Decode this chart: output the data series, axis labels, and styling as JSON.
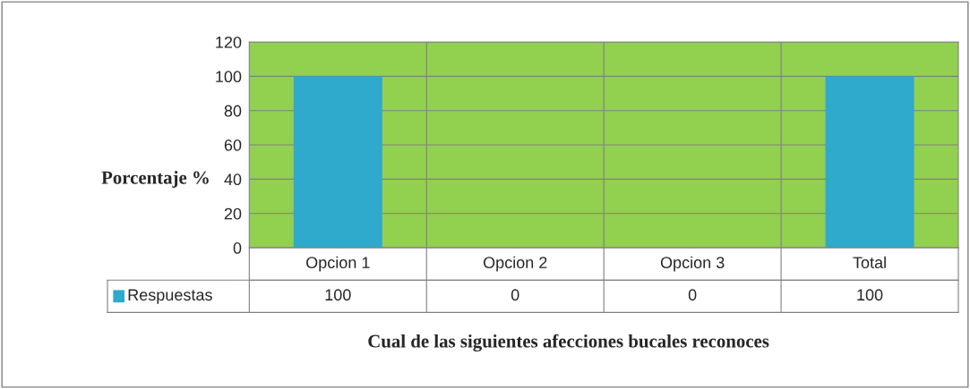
{
  "chart_data": {
    "type": "bar",
    "categories": [
      "Opcion 1",
      "Opcion 2",
      "Opcion 3",
      "Total"
    ],
    "series": [
      {
        "name": "Respuestas",
        "color": "#2fa9cc",
        "values": [
          100,
          0,
          0,
          100
        ]
      }
    ],
    "ylim": [
      0,
      120
    ],
    "yticks": [
      0,
      20,
      40,
      60,
      80,
      100,
      120
    ],
    "ylabel": "Porcentaje %",
    "xlabel": "Cual de las siguientes afecciones bucales reconoces",
    "grid": "y",
    "legend": "bottom",
    "data_labels": true
  }
}
